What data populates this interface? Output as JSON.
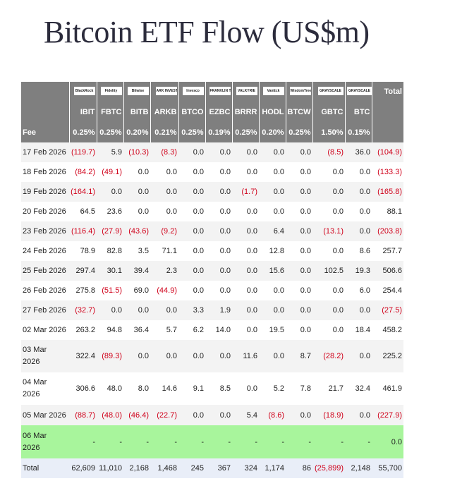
{
  "header": {
    "title": "Bitcoin ETF Flow (US$m)"
  },
  "table": {
    "logos": [
      "BlackRock",
      "Fidelity",
      "Bitwise",
      "ARK INVEST",
      "Invesco",
      "FRANKLIN TEMPLETON",
      "VALKYRIE",
      "VanEck",
      "WisdomTree",
      "GRAYSCALE",
      "GRAYSCALE"
    ],
    "total_header": "Total",
    "tickers": [
      "IBIT",
      "FBTC",
      "BITB",
      "ARKB",
      "BTCO",
      "EZBC",
      "BRRR",
      "HODL",
      "BTCW",
      "GBTC",
      "BTC"
    ],
    "fee_label": "Fee",
    "fees": [
      "0.25%",
      "0.25%",
      "0.20%",
      "0.21%",
      "0.25%",
      "0.19%",
      "0.25%",
      "0.20%",
      "0.25%",
      "1.50%",
      "0.15%"
    ],
    "rows": [
      {
        "date": "17 Feb 2026",
        "cells": [
          "(119.7)",
          "5.9",
          "(10.3)",
          "(8.3)",
          "0.0",
          "0.0",
          "0.0",
          "0.0",
          "0.0",
          "(8.5)",
          "36.0",
          "(104.9)"
        ]
      },
      {
        "date": "18 Feb 2026",
        "cells": [
          "(84.2)",
          "(49.1)",
          "0.0",
          "0.0",
          "0.0",
          "0.0",
          "0.0",
          "0.0",
          "0.0",
          "0.0",
          "0.0",
          "(133.3)"
        ]
      },
      {
        "date": "19 Feb 2026",
        "cells": [
          "(164.1)",
          "0.0",
          "0.0",
          "0.0",
          "0.0",
          "0.0",
          "(1.7)",
          "0.0",
          "0.0",
          "0.0",
          "0.0",
          "(165.8)"
        ]
      },
      {
        "date": "20 Feb 2026",
        "cells": [
          "64.5",
          "23.6",
          "0.0",
          "0.0",
          "0.0",
          "0.0",
          "0.0",
          "0.0",
          "0.0",
          "0.0",
          "0.0",
          "88.1"
        ]
      },
      {
        "date": "23 Feb 2026",
        "cells": [
          "(116.4)",
          "(27.9)",
          "(43.6)",
          "(9.2)",
          "0.0",
          "0.0",
          "0.0",
          "6.4",
          "0.0",
          "(13.1)",
          "0.0",
          "(203.8)"
        ]
      },
      {
        "date": "24 Feb 2026",
        "cells": [
          "78.9",
          "82.8",
          "3.5",
          "71.1",
          "0.0",
          "0.0",
          "0.0",
          "12.8",
          "0.0",
          "0.0",
          "8.6",
          "257.7"
        ]
      },
      {
        "date": "25 Feb 2026",
        "cells": [
          "297.4",
          "30.1",
          "39.4",
          "2.3",
          "0.0",
          "0.0",
          "0.0",
          "15.6",
          "0.0",
          "102.5",
          "19.3",
          "506.6"
        ]
      },
      {
        "date": "26 Feb 2026",
        "cells": [
          "275.8",
          "(51.5)",
          "69.0",
          "(44.9)",
          "0.0",
          "0.0",
          "0.0",
          "0.0",
          "0.0",
          "0.0",
          "6.0",
          "254.4"
        ]
      },
      {
        "date": "27 Feb 2026",
        "cells": [
          "(32.7)",
          "0.0",
          "0.0",
          "0.0",
          "3.3",
          "1.9",
          "0.0",
          "0.0",
          "0.0",
          "0.0",
          "0.0",
          "(27.5)"
        ]
      },
      {
        "date": "02 Mar 2026",
        "cells": [
          "263.2",
          "94.8",
          "36.4",
          "5.7",
          "6.2",
          "14.0",
          "0.0",
          "19.5",
          "0.0",
          "0.0",
          "18.4",
          "458.2"
        ]
      },
      {
        "date": "03 Mar 2026",
        "cells": [
          "322.4",
          "(89.3)",
          "0.0",
          "0.0",
          "0.0",
          "0.0",
          "11.6",
          "0.0",
          "8.7",
          "(28.2)",
          "0.0",
          "225.2"
        ]
      },
      {
        "date": "04 Mar 2026",
        "cells": [
          "306.6",
          "48.0",
          "8.0",
          "14.6",
          "9.1",
          "8.5",
          "0.0",
          "5.2",
          "7.8",
          "21.7",
          "32.4",
          "461.9"
        ]
      },
      {
        "date": "05 Mar 2026",
        "cells": [
          "(88.7)",
          "(48.0)",
          "(46.4)",
          "(22.7)",
          "0.0",
          "0.0",
          "5.4",
          "(8.6)",
          "0.0",
          "(18.9)",
          "0.0",
          "(227.9)"
        ]
      },
      {
        "date": "06 Mar 2026",
        "cells": [
          "-",
          "-",
          "-",
          "-",
          "-",
          "-",
          "-",
          "-",
          "-",
          "-",
          "-",
          "0.0"
        ]
      }
    ],
    "total_row": {
      "label": "Total",
      "cells": [
        "62,609",
        "11,010",
        "2,168",
        "1,468",
        "245",
        "367",
        "324",
        "1,174",
        "86",
        "(25,899)",
        "2,148",
        "55,700"
      ]
    }
  }
}
